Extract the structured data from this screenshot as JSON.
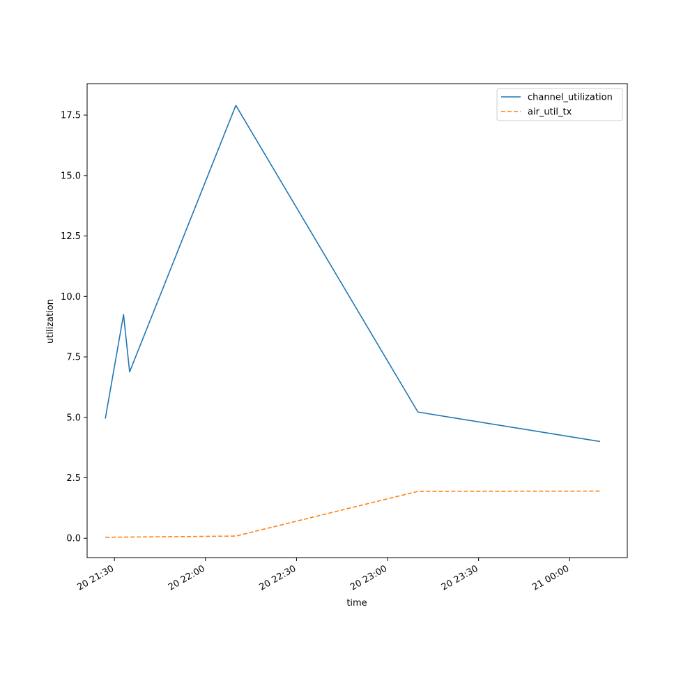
{
  "chart_data": {
    "type": "line",
    "title": "",
    "xlabel": "time",
    "ylabel": "utilization",
    "x_axis_type": "datetime",
    "xlim": [
      "2023-01-20 21:21",
      "2023-01-21 00:19"
    ],
    "ylim": [
      -0.8,
      18.8
    ],
    "x_ticks": [
      {
        "time": "2023-01-20 21:30",
        "label": "20 21:30"
      },
      {
        "time": "2023-01-20 22:00",
        "label": "20 22:00"
      },
      {
        "time": "2023-01-20 22:30",
        "label": "20 22:30"
      },
      {
        "time": "2023-01-20 23:00",
        "label": "20 23:00"
      },
      {
        "time": "2023-01-20 23:30",
        "label": "20 23:30"
      },
      {
        "time": "2023-01-21 00:00",
        "label": "21 00:00"
      }
    ],
    "y_ticks": [
      {
        "value": 0.0,
        "label": "0.0"
      },
      {
        "value": 2.5,
        "label": "2.5"
      },
      {
        "value": 5.0,
        "label": "5.0"
      },
      {
        "value": 7.5,
        "label": "7.5"
      },
      {
        "value": 10.0,
        "label": "10.0"
      },
      {
        "value": 12.5,
        "label": "12.5"
      },
      {
        "value": 15.0,
        "label": "15.0"
      },
      {
        "value": 17.5,
        "label": "17.5"
      }
    ],
    "grid": false,
    "legend_position": "top-right",
    "series": [
      {
        "name": "channel_utilization",
        "color": "#1f77b4",
        "style": "solid",
        "points": [
          {
            "x": "2023-01-20 21:27",
            "y": 4.95
          },
          {
            "x": "2023-01-20 21:33",
            "y": 9.25
          },
          {
            "x": "2023-01-20 21:35",
            "y": 6.88
          },
          {
            "x": "2023-01-20 22:10",
            "y": 17.9
          },
          {
            "x": "2023-01-20 23:10",
            "y": 5.22
          },
          {
            "x": "2023-01-21 00:10",
            "y": 4.0
          }
        ]
      },
      {
        "name": "air_util_tx",
        "color": "#ff7f0e",
        "style": "dashed",
        "points": [
          {
            "x": "2023-01-20 21:27",
            "y": 0.04
          },
          {
            "x": "2023-01-20 22:10",
            "y": 0.09
          },
          {
            "x": "2023-01-20 23:10",
            "y": 1.94
          },
          {
            "x": "2023-01-21 00:10",
            "y": 1.95
          }
        ]
      }
    ]
  }
}
